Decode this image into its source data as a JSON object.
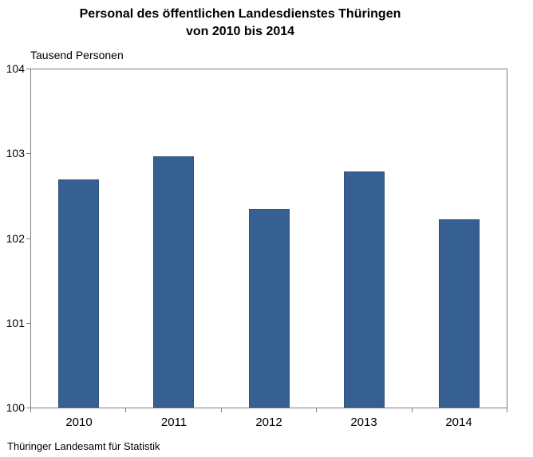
{
  "title": {
    "line1": "Personal des öffentlichen Landesdienstes Thüringen",
    "line2": "von 2010 bis 2014"
  },
  "axis_unit_label": "Tausend Personen",
  "source": "Thüringer Landesamt für Statistik",
  "colors": {
    "bar_fill": "#366092",
    "bar_border": "#2d5178",
    "axis_line": "#7f7f7f",
    "text": "#000000"
  },
  "chart_data": {
    "type": "bar",
    "title": "Personal des öffentlichen Landesdienstes Thüringen von 2010 bis 2014",
    "categories": [
      "2010",
      "2011",
      "2012",
      "2013",
      "2014"
    ],
    "values": [
      102.7,
      102.97,
      102.35,
      102.79,
      102.23
    ],
    "xlabel": "",
    "ylabel": "Tausend Personen",
    "ylim": [
      100,
      104
    ],
    "yticks": [
      100,
      101,
      102,
      103,
      104
    ],
    "grid": false,
    "legend": "none"
  }
}
